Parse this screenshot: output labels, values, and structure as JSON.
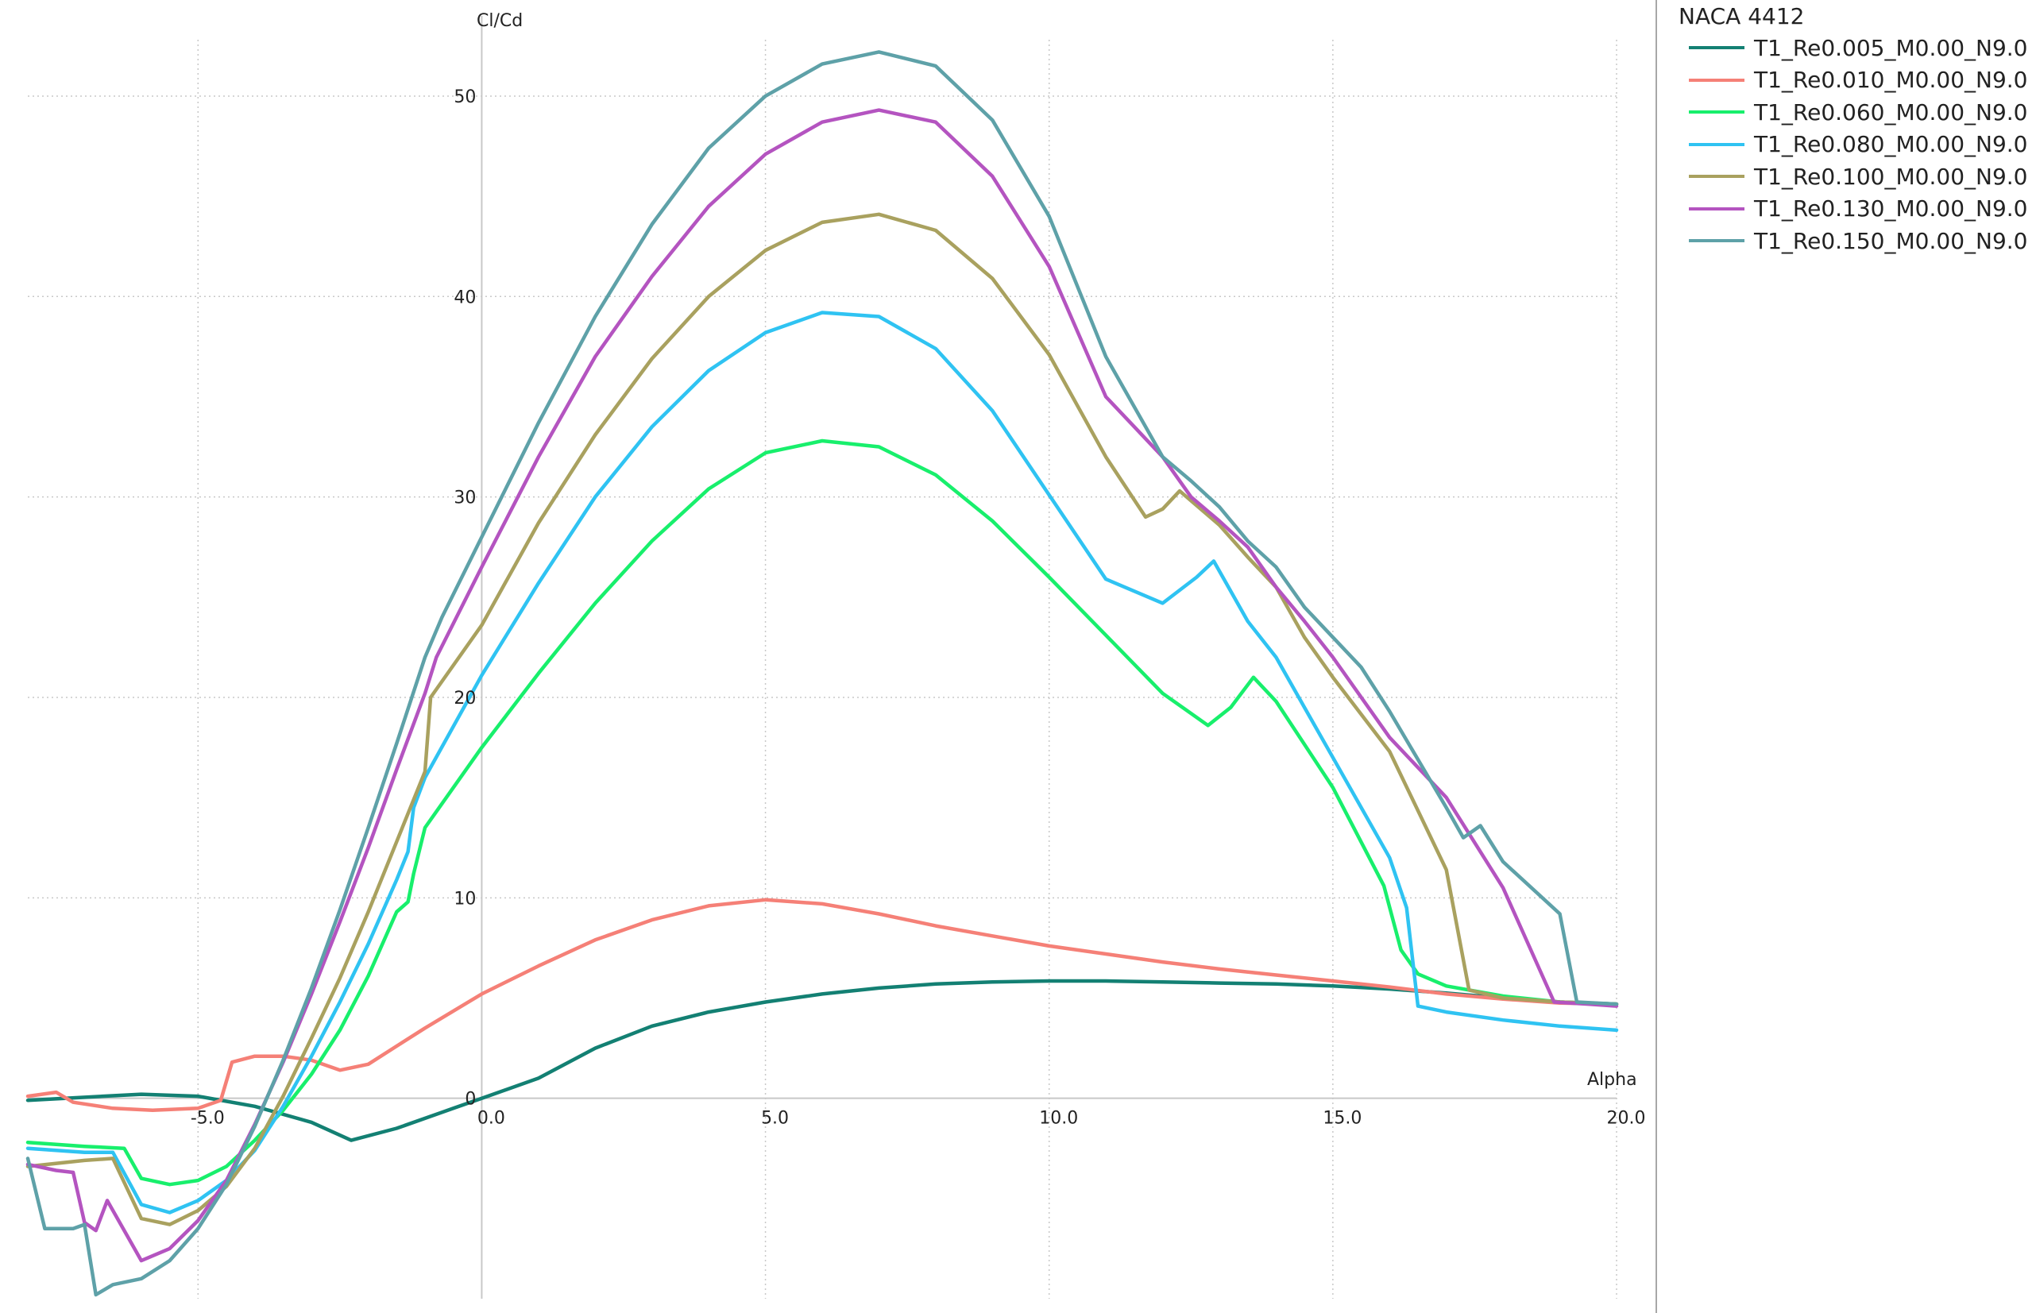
{
  "chart_data": {
    "type": "line",
    "title": "",
    "xlabel": "Alpha",
    "ylabel": "Cl/Cd",
    "xlim": [
      -8,
      20
    ],
    "ylim": [
      -10,
      54
    ],
    "xticks": [
      "-5.0",
      "0.0",
      "5.0",
      "10.0",
      "15.0",
      "20.0"
    ],
    "yticks": [
      "0",
      "10",
      "20",
      "30",
      "40",
      "50"
    ],
    "grid": true,
    "legend": {
      "title": "NACA 4412",
      "placement": "right"
    },
    "series": [
      {
        "name": "T1_Re0.005_M0.00_N9.0",
        "color": "#138073",
        "points": [
          [
            -8,
            -0.1
          ],
          [
            -6,
            0.2
          ],
          [
            -5,
            0.1
          ],
          [
            -4,
            -0.4
          ],
          [
            -3,
            -1.2
          ],
          [
            -2.3,
            -2.1
          ],
          [
            -1.5,
            -1.5
          ],
          [
            -0.5,
            -0.5
          ],
          [
            0,
            0
          ],
          [
            1,
            1
          ],
          [
            2,
            2.5
          ],
          [
            3,
            3.6
          ],
          [
            4,
            4.3
          ],
          [
            5,
            4.8
          ],
          [
            6,
            5.2
          ],
          [
            7,
            5.5
          ],
          [
            8,
            5.7
          ],
          [
            9,
            5.8
          ],
          [
            10,
            5.85
          ],
          [
            11,
            5.85
          ],
          [
            12,
            5.8
          ],
          [
            13,
            5.75
          ],
          [
            14,
            5.7
          ],
          [
            15,
            5.6
          ],
          [
            16,
            5.45
          ],
          [
            17,
            5.25
          ],
          [
            18,
            5.0
          ],
          [
            19,
            4.8
          ],
          [
            20,
            4.7
          ]
        ]
      },
      {
        "name": "T1_Re0.010_M0.00_N9.0",
        "color": "#f58077",
        "points": [
          [
            -8,
            0.1
          ],
          [
            -7.5,
            0.3
          ],
          [
            -7.2,
            -0.2
          ],
          [
            -6.5,
            -0.5
          ],
          [
            -5.8,
            -0.6
          ],
          [
            -5,
            -0.5
          ],
          [
            -4.6,
            -0.1
          ],
          [
            -4.4,
            1.8
          ],
          [
            -4,
            2.1
          ],
          [
            -3.5,
            2.1
          ],
          [
            -3,
            1.9
          ],
          [
            -2.5,
            1.4
          ],
          [
            -2,
            1.7
          ],
          [
            -1.5,
            2.6
          ],
          [
            -1,
            3.5
          ],
          [
            0,
            5.2
          ],
          [
            1,
            6.6
          ],
          [
            2,
            7.9
          ],
          [
            3,
            8.9
          ],
          [
            4,
            9.6
          ],
          [
            5,
            9.9
          ],
          [
            6,
            9.7
          ],
          [
            7,
            9.2
          ],
          [
            8,
            8.6
          ],
          [
            9,
            8.1
          ],
          [
            10,
            7.6
          ],
          [
            11,
            7.2
          ],
          [
            12,
            6.8
          ],
          [
            13,
            6.45
          ],
          [
            14,
            6.15
          ],
          [
            15,
            5.85
          ],
          [
            16,
            5.55
          ],
          [
            17,
            5.2
          ],
          [
            18,
            4.95
          ],
          [
            19,
            4.75
          ],
          [
            20,
            4.7
          ]
        ]
      },
      {
        "name": "T1_Re0.060_M0.00_N9.0",
        "color": "#18ef6c",
        "points": [
          [
            -8,
            -2.2
          ],
          [
            -7,
            -2.4
          ],
          [
            -6.3,
            -2.5
          ],
          [
            -6,
            -4
          ],
          [
            -5.5,
            -4.3
          ],
          [
            -5,
            -4.1
          ],
          [
            -4.5,
            -3.4
          ],
          [
            -4,
            -2.1
          ],
          [
            -3.5,
            -0.6
          ],
          [
            -3,
            1.2
          ],
          [
            -2.5,
            3.4
          ],
          [
            -2,
            6.1
          ],
          [
            -1.5,
            9.3
          ],
          [
            -1.3,
            9.8
          ],
          [
            -1.2,
            11.2
          ],
          [
            -1,
            13.5
          ],
          [
            0,
            17.5
          ],
          [
            1,
            21.2
          ],
          [
            2,
            24.7
          ],
          [
            3,
            27.8
          ],
          [
            4,
            30.4
          ],
          [
            5,
            32.2
          ],
          [
            6,
            32.8
          ],
          [
            7,
            32.5
          ],
          [
            8,
            31.1
          ],
          [
            9,
            28.8
          ],
          [
            10,
            26.0
          ],
          [
            11,
            23.1
          ],
          [
            12,
            20.2
          ],
          [
            12.8,
            18.6
          ],
          [
            13.2,
            19.5
          ],
          [
            13.6,
            21.0
          ],
          [
            14,
            19.8
          ],
          [
            15,
            15.5
          ],
          [
            15.9,
            10.6
          ],
          [
            16.2,
            7.4
          ],
          [
            16.5,
            6.2
          ],
          [
            17,
            5.6
          ],
          [
            18,
            5.1
          ],
          [
            19,
            4.8
          ],
          [
            20,
            4.7
          ]
        ]
      },
      {
        "name": "T1_Re0.080_M0.00_N9.0",
        "color": "#2fc3f2",
        "points": [
          [
            -8,
            -2.5
          ],
          [
            -7,
            -2.7
          ],
          [
            -6.5,
            -2.7
          ],
          [
            -6,
            -5.3
          ],
          [
            -5.5,
            -5.7
          ],
          [
            -5,
            -5.1
          ],
          [
            -4.5,
            -4.1
          ],
          [
            -4,
            -2.6
          ],
          [
            -3.5,
            -0.4
          ],
          [
            -3,
            2.1
          ],
          [
            -2.5,
            4.8
          ],
          [
            -2,
            7.7
          ],
          [
            -1.5,
            10.9
          ],
          [
            -1.3,
            12.3
          ],
          [
            -1.2,
            14.5
          ],
          [
            -1,
            16.0
          ],
          [
            0,
            21.1
          ],
          [
            1,
            25.7
          ],
          [
            2,
            30.0
          ],
          [
            3,
            33.5
          ],
          [
            4,
            36.3
          ],
          [
            5,
            38.2
          ],
          [
            6,
            39.2
          ],
          [
            7,
            39.0
          ],
          [
            8,
            37.4
          ],
          [
            9,
            34.3
          ],
          [
            10,
            30.1
          ],
          [
            11,
            25.9
          ],
          [
            12,
            24.7
          ],
          [
            12.6,
            26.0
          ],
          [
            12.9,
            26.8
          ],
          [
            13.5,
            23.8
          ],
          [
            14,
            22.0
          ],
          [
            14.5,
            19.5
          ],
          [
            15,
            17.0
          ],
          [
            16,
            12.0
          ],
          [
            16.3,
            9.5
          ],
          [
            16.5,
            4.6
          ],
          [
            17,
            4.3
          ],
          [
            18,
            3.9
          ],
          [
            19,
            3.6
          ],
          [
            20,
            3.4
          ]
        ]
      },
      {
        "name": "T1_Re0.100_M0.00_N9.0",
        "color": "#a9a15f",
        "points": [
          [
            -8,
            -3.4
          ],
          [
            -7,
            -3.1
          ],
          [
            -6.5,
            -3.0
          ],
          [
            -6,
            -6.0
          ],
          [
            -5.5,
            -6.3
          ],
          [
            -5,
            -5.6
          ],
          [
            -4.5,
            -4.4
          ],
          [
            -4,
            -2.5
          ],
          [
            -3.5,
            0.1
          ],
          [
            -3,
            3.0
          ],
          [
            -2.5,
            6.0
          ],
          [
            -2,
            9.3
          ],
          [
            -1.5,
            12.8
          ],
          [
            -1,
            16.3
          ],
          [
            -0.9,
            20.0
          ],
          [
            0,
            23.6
          ],
          [
            1,
            28.7
          ],
          [
            2,
            33.1
          ],
          [
            3,
            36.9
          ],
          [
            4,
            40.0
          ],
          [
            5,
            42.3
          ],
          [
            6,
            43.7
          ],
          [
            7,
            44.1
          ],
          [
            8,
            43.3
          ],
          [
            9,
            40.9
          ],
          [
            10,
            37.1
          ],
          [
            11,
            32.0
          ],
          [
            11.7,
            29.0
          ],
          [
            12,
            29.4
          ],
          [
            12.3,
            30.3
          ],
          [
            13,
            28.6
          ],
          [
            13.5,
            27.0
          ],
          [
            14,
            25.5
          ],
          [
            14.5,
            23.0
          ],
          [
            15,
            21.0
          ],
          [
            16,
            17.3
          ],
          [
            17,
            11.4
          ],
          [
            17.4,
            5.4
          ],
          [
            18,
            5.0
          ],
          [
            19,
            4.8
          ],
          [
            20,
            4.7
          ]
        ]
      },
      {
        "name": "T1_Re0.130_M0.00_N9.0",
        "color": "#b454c0",
        "points": [
          [
            -8,
            -3.3
          ],
          [
            -7.5,
            -3.6
          ],
          [
            -7.2,
            -3.7
          ],
          [
            -7,
            -6.2
          ],
          [
            -6.8,
            -6.6
          ],
          [
            -6.6,
            -5.1
          ],
          [
            -6,
            -8.1
          ],
          [
            -5.5,
            -7.5
          ],
          [
            -5,
            -6.1
          ],
          [
            -4.5,
            -4.1
          ],
          [
            -4,
            -1.3
          ],
          [
            -3.5,
            1.8
          ],
          [
            -3,
            5.2
          ],
          [
            -2.5,
            8.8
          ],
          [
            -2,
            12.5
          ],
          [
            -1.5,
            16.4
          ],
          [
            -1,
            20.2
          ],
          [
            -0.8,
            22.0
          ],
          [
            0,
            26.5
          ],
          [
            1,
            32.0
          ],
          [
            2,
            37.0
          ],
          [
            3,
            41.0
          ],
          [
            4,
            44.5
          ],
          [
            5,
            47.1
          ],
          [
            6,
            48.7
          ],
          [
            7,
            49.3
          ],
          [
            8,
            48.7
          ],
          [
            9,
            46.0
          ],
          [
            10,
            41.5
          ],
          [
            11,
            35.0
          ],
          [
            11.5,
            33.5
          ],
          [
            12,
            32.0
          ],
          [
            12.5,
            30.0
          ],
          [
            13,
            28.8
          ],
          [
            13.5,
            27.5
          ],
          [
            14,
            25.5
          ],
          [
            14.5,
            23.8
          ],
          [
            15,
            22.0
          ],
          [
            16,
            18.0
          ],
          [
            17,
            15.0
          ],
          [
            18,
            10.5
          ],
          [
            18.9,
            4.8
          ],
          [
            19.5,
            4.7
          ],
          [
            20,
            4.6
          ]
        ]
      },
      {
        "name": "T1_Re0.150_M0.00_N9.0",
        "color": "#5ea1a8",
        "points": [
          [
            -8,
            -3.0
          ],
          [
            -7.7,
            -6.5
          ],
          [
            -7.2,
            -6.5
          ],
          [
            -7,
            -6.3
          ],
          [
            -6.8,
            -9.8
          ],
          [
            -6.5,
            -9.3
          ],
          [
            -6,
            -9.0
          ],
          [
            -5.5,
            -8.1
          ],
          [
            -5,
            -6.5
          ],
          [
            -4.5,
            -4.3
          ],
          [
            -4,
            -1.4
          ],
          [
            -3.5,
            1.9
          ],
          [
            -3,
            5.5
          ],
          [
            -2.5,
            9.4
          ],
          [
            -2,
            13.5
          ],
          [
            -1.5,
            17.7
          ],
          [
            -1,
            22.0
          ],
          [
            -0.7,
            24.0
          ],
          [
            0,
            28.0
          ],
          [
            1,
            33.7
          ],
          [
            2,
            39.0
          ],
          [
            3,
            43.6
          ],
          [
            4,
            47.4
          ],
          [
            5,
            50.0
          ],
          [
            6,
            51.6
          ],
          [
            7,
            52.2
          ],
          [
            8,
            51.5
          ],
          [
            9,
            48.8
          ],
          [
            10,
            44.0
          ],
          [
            11,
            37.0
          ],
          [
            12,
            32.0
          ],
          [
            12.5,
            30.8
          ],
          [
            13,
            29.5
          ],
          [
            13.5,
            27.8
          ],
          [
            14,
            26.5
          ],
          [
            14.5,
            24.5
          ],
          [
            15,
            23.0
          ],
          [
            15.5,
            21.5
          ],
          [
            16,
            19.3
          ],
          [
            17,
            14.5
          ],
          [
            17.3,
            13.0
          ],
          [
            17.6,
            13.6
          ],
          [
            18,
            11.8
          ],
          [
            19,
            9.2
          ],
          [
            19.3,
            4.8
          ],
          [
            20,
            4.7
          ]
        ]
      }
    ]
  }
}
